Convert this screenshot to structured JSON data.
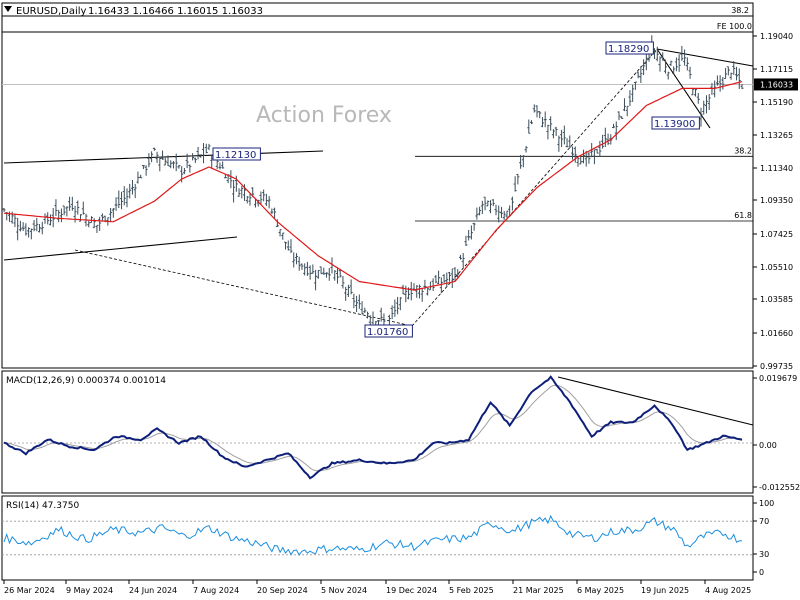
{
  "header": {
    "symbol": "EURUSD,Daily",
    "open": "1.16433",
    "high": "1.16466",
    "low": "1.16015",
    "close": "1.16033"
  },
  "watermark": "Action Forex",
  "colors": {
    "candles": "#3a4d5a",
    "ma": "#e01818",
    "macd": "#0d1f7a",
    "signal": "#a0a0a0",
    "rsi": "#1a8fe0",
    "frame": "#000000"
  },
  "chart_data": [
    {
      "type": "candlestick",
      "panel": "price",
      "ylim": [
        0.9944,
        1.208
      ],
      "price_labels": [
        "1.19040",
        "1.17115",
        "1.15190",
        "1.13265",
        "1.11340",
        "1.09350",
        "1.07425",
        "1.05510",
        "1.03585",
        "1.01660",
        "0.99735"
      ],
      "current_price": "1.16033",
      "annotations": {
        "high_label": "1.18290",
        "low_label": "1.01760",
        "swing_high_label": "1.12130",
        "swing_low_label": "1.13900",
        "fib_top": "38.2",
        "fe_label": "FE 100.0",
        "fib_382": "38.2",
        "fib_618": "61.8"
      },
      "levels": {
        "fe100": 1.191,
        "fib382": 1.11828,
        "fib618": 1.08042,
        "current": 1.16033
      },
      "close_anchors": [
        [
          0,
          1.087
        ],
        [
          8,
          1.075
        ],
        [
          15,
          1.08
        ],
        [
          25,
          1.09
        ],
        [
          34,
          1.078
        ],
        [
          45,
          1.095
        ],
        [
          55,
          1.12
        ],
        [
          65,
          1.11
        ],
        [
          75,
          1.122
        ],
        [
          85,
          1.1
        ],
        [
          97,
          1.092
        ],
        [
          105,
          1.06
        ],
        [
          113,
          1.05
        ],
        [
          120,
          1.052
        ],
        [
          130,
          1.03
        ],
        [
          140,
          1.02
        ],
        [
          148,
          1.04
        ],
        [
          155,
          1.042
        ],
        [
          165,
          1.048
        ],
        [
          175,
          1.09
        ],
        [
          185,
          1.085
        ],
        [
          194,
          1.145
        ],
        [
          203,
          1.13
        ],
        [
          213,
          1.115
        ],
        [
          222,
          1.13
        ],
        [
          230,
          1.155
        ],
        [
          237,
          1.182
        ],
        [
          243,
          1.17
        ],
        [
          249,
          1.175
        ],
        [
          255,
          1.145
        ],
        [
          259,
          1.155
        ],
        [
          266,
          1.169
        ],
        [
          270,
          1.16
        ]
      ],
      "ma_anchors": [
        [
          0,
          1.085
        ],
        [
          20,
          1.082
        ],
        [
          40,
          1.08
        ],
        [
          55,
          1.092
        ],
        [
          65,
          1.105
        ],
        [
          75,
          1.112
        ],
        [
          85,
          1.105
        ],
        [
          100,
          1.08
        ],
        [
          115,
          1.06
        ],
        [
          130,
          1.045
        ],
        [
          150,
          1.04
        ],
        [
          165,
          1.045
        ],
        [
          180,
          1.075
        ],
        [
          195,
          1.1
        ],
        [
          210,
          1.118
        ],
        [
          222,
          1.128
        ],
        [
          235,
          1.148
        ],
        [
          248,
          1.158
        ],
        [
          260,
          1.158
        ],
        [
          270,
          1.162
        ]
      ],
      "bars": 271
    },
    {
      "type": "line",
      "panel": "macd",
      "title": "MACD(12,26,9) 0.000374 0.001014",
      "labels": [
        "0.019679",
        "0.00",
        "-0.012552"
      ],
      "ylim": [
        -0.0146,
        0.021
      ],
      "macd_anchors": [
        [
          0,
          0.0
        ],
        [
          8,
          -0.003
        ],
        [
          16,
          0.001
        ],
        [
          24,
          -0.001
        ],
        [
          33,
          -0.002
        ],
        [
          41,
          0.002
        ],
        [
          50,
          0.001
        ],
        [
          56,
          0.004
        ],
        [
          64,
          0.0
        ],
        [
          72,
          0.002
        ],
        [
          80,
          -0.004
        ],
        [
          88,
          -0.007
        ],
        [
          96,
          -0.005
        ],
        [
          104,
          -0.003
        ],
        [
          112,
          -0.01
        ],
        [
          120,
          -0.006
        ],
        [
          130,
          -0.005
        ],
        [
          140,
          -0.006
        ],
        [
          150,
          -0.005
        ],
        [
          157,
          0.0
        ],
        [
          163,
          0.0
        ],
        [
          170,
          0.001
        ],
        [
          178,
          0.012
        ],
        [
          185,
          0.005
        ],
        [
          193,
          0.015
        ],
        [
          200,
          0.019
        ],
        [
          207,
          0.012
        ],
        [
          215,
          0.002
        ],
        [
          222,
          0.006
        ],
        [
          230,
          0.006
        ],
        [
          238,
          0.011
        ],
        [
          245,
          0.005
        ],
        [
          250,
          -0.002
        ],
        [
          257,
          0.0
        ],
        [
          263,
          0.002
        ],
        [
          270,
          0.001
        ]
      ]
    },
    {
      "type": "line",
      "panel": "rsi",
      "title": "RSI(14) 47.3750",
      "labels": [
        "100",
        "70",
        "30",
        "0"
      ],
      "ylim": [
        0,
        100
      ],
      "rsi_anchors": [
        [
          0,
          50
        ],
        [
          10,
          44
        ],
        [
          20,
          60
        ],
        [
          30,
          48
        ],
        [
          40,
          60
        ],
        [
          50,
          56
        ],
        [
          58,
          62
        ],
        [
          66,
          52
        ],
        [
          75,
          62
        ],
        [
          84,
          50
        ],
        [
          92,
          44
        ],
        [
          100,
          36
        ],
        [
          110,
          34
        ],
        [
          120,
          38
        ],
        [
          130,
          36
        ],
        [
          140,
          44
        ],
        [
          150,
          40
        ],
        [
          160,
          48
        ],
        [
          170,
          50
        ],
        [
          178,
          68
        ],
        [
          186,
          58
        ],
        [
          193,
          68
        ],
        [
          200,
          72
        ],
        [
          208,
          54
        ],
        [
          216,
          50
        ],
        [
          223,
          58
        ],
        [
          231,
          60
        ],
        [
          238,
          70
        ],
        [
          245,
          60
        ],
        [
          250,
          40
        ],
        [
          256,
          52
        ],
        [
          263,
          56
        ],
        [
          270,
          47
        ]
      ]
    },
    {
      "type": "axis",
      "panel": "time",
      "x_labels": [
        "26 Mar 2024",
        "9 May 2024",
        "24 Jun 2024",
        "7 Aug 2024",
        "20 Sep 2024",
        "5 Nov 2024",
        "19 Dec 2024",
        "5 Feb 2025",
        "21 Mar 2025",
        "6 May 2025",
        "19 Jun 2025",
        "4 Aug 2025"
      ]
    }
  ]
}
